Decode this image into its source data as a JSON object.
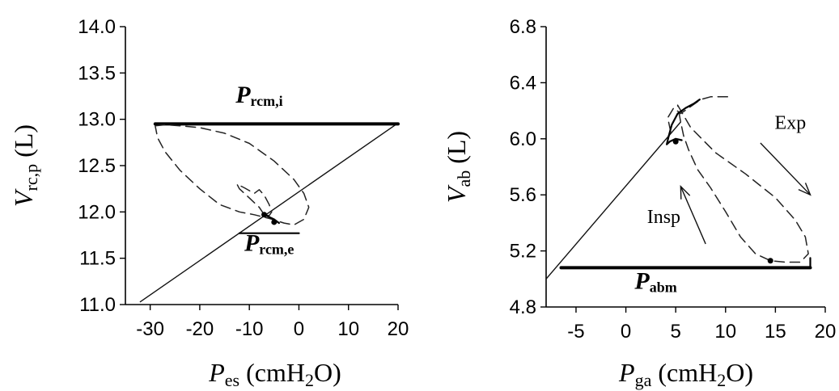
{
  "chart_data": [
    {
      "type": "line",
      "xlabel": {
        "symbol": "P",
        "sub": "es",
        "unit": " (cmH",
        "unit_sub": "2",
        "unit_end": "O)"
      },
      "ylabel": {
        "symbol": "V",
        "sub": "rc,p",
        "unit": " (L)"
      },
      "xlim": [
        -35,
        20
      ],
      "ylim": [
        11.0,
        14.0
      ],
      "x_ticks": [
        -30,
        -20,
        -10,
        0,
        10,
        20
      ],
      "x_tick_labels": [
        "-30",
        "-20",
        "-10",
        "0",
        "10",
        "20"
      ],
      "y_ticks": [
        11.0,
        11.5,
        12.0,
        12.5,
        13.0,
        13.5,
        14.0
      ],
      "y_tick_labels": [
        "11.0",
        "11.5",
        "12.0",
        "12.5",
        "13.0",
        "13.5",
        "14.0"
      ],
      "annotations": [
        {
          "id": "prcm-i",
          "symbol": "P",
          "sub": "rcm,i",
          "x": -8,
          "y": 13.18
        },
        {
          "id": "prcm-e",
          "symbol": "P",
          "sub": "rcm,e",
          "x": -6,
          "y": 11.58
        }
      ],
      "series": [
        {
          "role": "diagonal",
          "style": "solid-thin",
          "x": [
            -32,
            20
          ],
          "y": [
            11.03,
            12.96
          ]
        },
        {
          "role": "horizontal-i",
          "style": "solid-thick",
          "x": [
            -29,
            20
          ],
          "y": [
            12.95,
            12.95
          ]
        },
        {
          "role": "horizontal-e",
          "style": "solid",
          "x": [
            -12,
            0
          ],
          "y": [
            11.77,
            11.77
          ]
        },
        {
          "role": "loop",
          "style": "dashed",
          "x": [
            -29,
            -27,
            -24,
            -20,
            -15,
            -10,
            -5,
            -1,
            1,
            2,
            1,
            -1,
            -3,
            -6,
            -9,
            -12,
            -16,
            -20,
            -24,
            -27,
            -28.5,
            -29
          ],
          "y": [
            12.93,
            12.94,
            12.93,
            12.91,
            12.85,
            12.74,
            12.55,
            12.35,
            12.2,
            12.05,
            11.92,
            11.86,
            11.88,
            11.93,
            11.97,
            12.0,
            12.08,
            12.25,
            12.45,
            12.65,
            12.8,
            12.93
          ]
        },
        {
          "role": "inner-loop",
          "style": "dashed",
          "x": [
            -7,
            -8,
            -10,
            -12,
            -12.5,
            -11,
            -9,
            -8,
            -7,
            -6,
            -5.5,
            -6,
            -7
          ],
          "y": [
            11.97,
            12.05,
            12.15,
            12.25,
            12.3,
            12.26,
            12.2,
            12.24,
            12.18,
            12.08,
            12.0,
            11.96,
            11.97
          ]
        },
        {
          "role": "small-tail",
          "style": "solid",
          "x": [
            -7,
            -5,
            -4
          ],
          "y": [
            11.97,
            11.92,
            11.88
          ]
        }
      ],
      "points": [
        {
          "x": -7,
          "y": 11.97
        },
        {
          "x": -5,
          "y": 11.89
        }
      ]
    },
    {
      "type": "line",
      "xlabel": {
        "symbol": "P",
        "sub": "ga",
        "unit": " (cmH",
        "unit_sub": "2",
        "unit_end": "O)"
      },
      "ylabel": {
        "symbol": "V",
        "sub": "ab",
        "unit": " (L)"
      },
      "xlim": [
        -8,
        20
      ],
      "ylim": [
        4.8,
        6.8
      ],
      "x_ticks": [
        -5,
        0,
        5,
        10,
        15,
        20
      ],
      "x_tick_labels": [
        "-5",
        "0",
        "5",
        "10",
        "15",
        "20"
      ],
      "y_ticks": [
        4.8,
        5.2,
        5.6,
        6.0,
        6.4,
        6.8
      ],
      "y_tick_labels": [
        "4.8",
        "5.2",
        "5.6",
        "6.0",
        "6.4",
        "6.8"
      ],
      "annotations": [
        {
          "id": "pabm",
          "symbol": "P",
          "sub": "abm",
          "x": 3,
          "y": 4.93
        },
        {
          "id": "exp",
          "text": "Exp",
          "x": 16.5,
          "y": 6.07
        },
        {
          "id": "insp",
          "text": "Insp",
          "x": 3.8,
          "y": 5.4
        }
      ],
      "arrows": [
        {
          "id": "exp-arrow",
          "x1": 13.5,
          "y1": 5.97,
          "x2": 18.5,
          "y2": 5.6
        },
        {
          "id": "insp-arrow",
          "x1": 8.0,
          "y1": 5.25,
          "x2": 5.5,
          "y2": 5.66
        }
      ],
      "series": [
        {
          "role": "diagonal",
          "style": "solid-thin",
          "x": [
            -8,
            5.5
          ],
          "y": [
            5.0,
            6.12
          ]
        },
        {
          "role": "horizontal",
          "style": "solid-thick",
          "x": [
            -6.5,
            18.5
          ],
          "y": [
            5.08,
            5.08
          ]
        },
        {
          "role": "vertical-end",
          "style": "solid",
          "x": [
            18.5,
            18.5
          ],
          "y": [
            5.08,
            5.15
          ]
        },
        {
          "role": "loop",
          "style": "dashed",
          "x": [
            5.2,
            6.5,
            9,
            12,
            15,
            17,
            18,
            18.3,
            17.5,
            16,
            14.5,
            13,
            11.5,
            10,
            8.5,
            7.2,
            6.3,
            5.8,
            5.5,
            5.2
          ],
          "y": [
            6.24,
            6.08,
            5.9,
            5.75,
            5.58,
            5.42,
            5.3,
            5.18,
            5.12,
            5.12,
            5.13,
            5.18,
            5.3,
            5.48,
            5.65,
            5.78,
            5.92,
            6.02,
            6.12,
            6.24
          ]
        },
        {
          "role": "top-scribble",
          "style": "dashed",
          "x": [
            4.5,
            4.2,
            4.8,
            5.5,
            6.5,
            7.5,
            8.5,
            10.5
          ],
          "y": [
            6.05,
            6.15,
            6.22,
            6.18,
            6.23,
            6.28,
            6.3,
            6.3
          ]
        },
        {
          "role": "upper-solid",
          "style": "solid",
          "x": [
            4.3,
            4.6,
            5.2,
            6.0,
            6.8,
            7.4
          ],
          "y": [
            6.02,
            6.1,
            6.18,
            6.22,
            6.25,
            6.28
          ]
        },
        {
          "role": "lower-curl",
          "style": "solid",
          "x": [
            4.3,
            4.1,
            4.4,
            5.0,
            5.6
          ],
          "y": [
            6.02,
            5.96,
            5.98,
            6.0,
            5.99
          ]
        }
      ],
      "points": [
        {
          "x": 5.0,
          "y": 5.98
        },
        {
          "x": 14.5,
          "y": 5.13
        }
      ]
    }
  ]
}
